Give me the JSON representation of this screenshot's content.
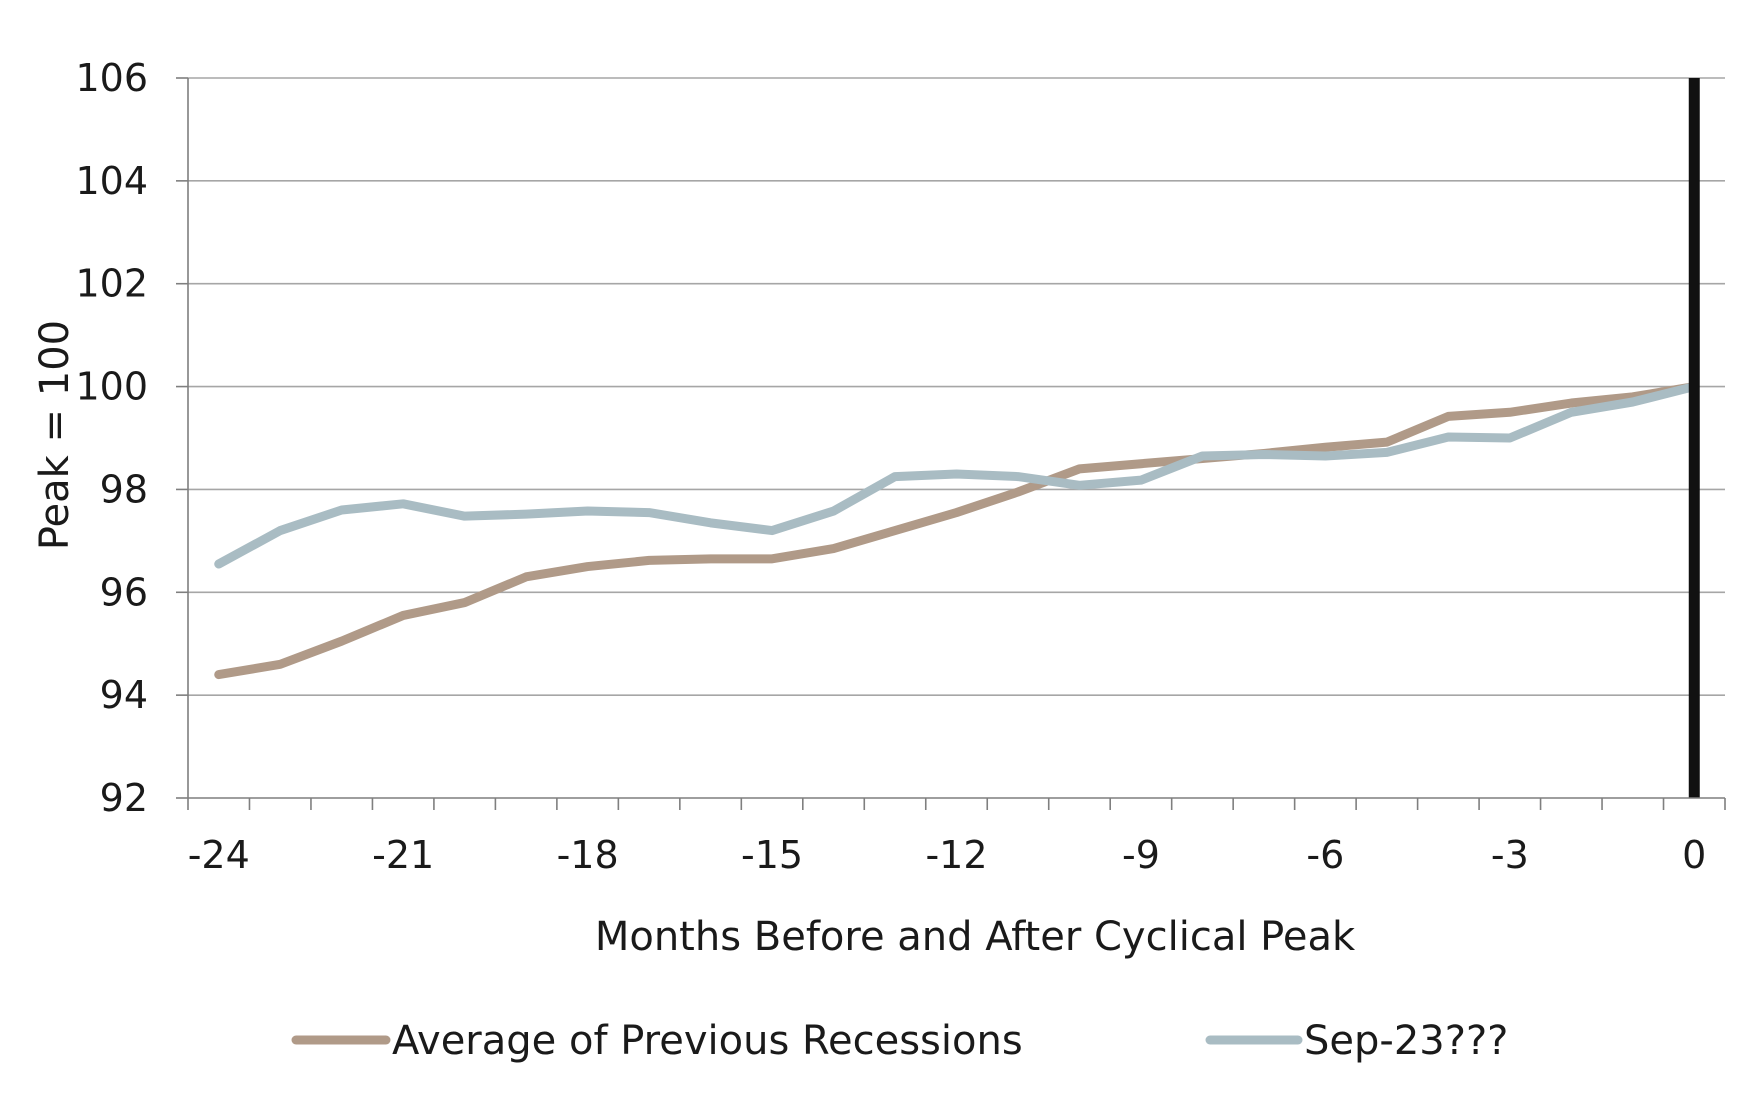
{
  "chart_data": {
    "type": "line",
    "title": "",
    "xlabel": "Months Before and After Cyclical Peak",
    "ylabel": "Peak = 100",
    "xlim": [
      -24.5,
      0.5
    ],
    "ylim": [
      92,
      106
    ],
    "yticks": [
      92,
      94,
      96,
      98,
      100,
      102,
      104,
      106
    ],
    "xticks": [
      -24,
      -21,
      -18,
      -15,
      -12,
      -9,
      -6,
      -3,
      0
    ],
    "grid": "horizontal",
    "legend_position": "bottom",
    "x": [
      -24,
      -23,
      -22,
      -21,
      -20,
      -19,
      -18,
      -17,
      -16,
      -15,
      -14,
      -13,
      -12,
      -11,
      -10,
      -9,
      -8,
      -7,
      -6,
      -5,
      -4,
      -3,
      -2,
      -1,
      0
    ],
    "series": [
      {
        "name": "Average of Previous Recessions",
        "color": "#b09a88",
        "values": [
          94.4,
          94.6,
          95.05,
          95.55,
          95.8,
          96.3,
          96.5,
          96.62,
          96.65,
          96.65,
          96.85,
          97.2,
          97.55,
          97.95,
          98.4,
          98.5,
          98.6,
          98.7,
          98.82,
          98.92,
          99.42,
          99.5,
          99.68,
          99.8,
          100.0
        ]
      },
      {
        "name": "Sep-23???",
        "color": "#a9bcc3",
        "values": [
          96.55,
          97.2,
          97.6,
          97.72,
          97.48,
          97.52,
          97.58,
          97.55,
          97.35,
          97.2,
          97.58,
          98.25,
          98.3,
          98.25,
          98.08,
          98.18,
          98.65,
          98.68,
          98.65,
          98.72,
          99.02,
          99.0,
          99.5,
          99.7,
          100.0
        ]
      }
    ],
    "reference_line": {
      "x": 0,
      "color": "#111111"
    },
    "axis_color": "#7f7f7f",
    "grid_color": "#a6a6a6"
  }
}
